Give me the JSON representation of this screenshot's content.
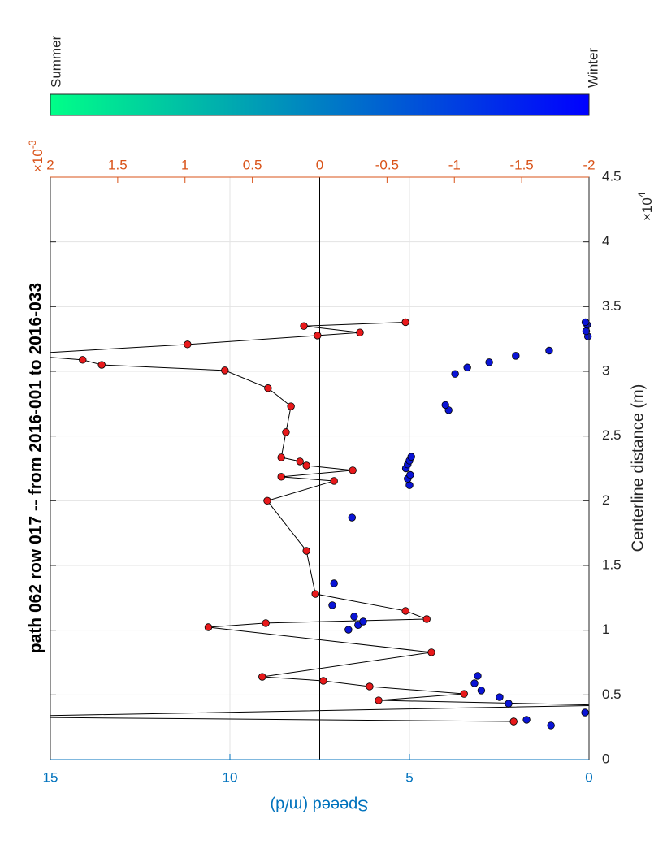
{
  "chart_data": {
    "type": "scatter",
    "title": "path 062 row 017 -- from 2016-001 to 2016-033",
    "x_label": "Centerline distance (m)",
    "y_label": "Speeed (m/d)",
    "x_multiplier": "×10",
    "x_exponent": "4",
    "y2_multiplier": "×10",
    "y2_exponent": "-3",
    "xlim": [
      0,
      4.5
    ],
    "xticks": [
      0,
      0.5,
      1,
      1.5,
      2,
      2.5,
      3,
      3.5,
      4,
      4.5
    ],
    "ylim": [
      0,
      15
    ],
    "yticks": [
      0,
      5,
      10,
      15
    ],
    "y2lim": [
      -2,
      2
    ],
    "y2ticks": [
      2,
      1.5,
      1,
      0.5,
      0,
      -0.5,
      -1,
      -1.5,
      -2
    ],
    "y2_reference_line": 0,
    "grid": true,
    "y_axis_color": "#0072bd",
    "y2_axis_color": "#d95319",
    "colorbar": {
      "labels": [
        "Summer",
        "Winter"
      ],
      "colors": [
        "#00ff88",
        "#0000ff"
      ]
    },
    "series": [
      {
        "color": "#e8191b",
        "line_color": "#000000",
        "line": true,
        "x": [
          0.295,
          0.33,
          0.42,
          0.458,
          0.508,
          0.565,
          0.609,
          0.64,
          0.829,
          1.023,
          1.055,
          1.086,
          1.149,
          1.28,
          1.613,
          2.0,
          2.153,
          2.185,
          2.235,
          2.272,
          2.304,
          2.335,
          2.53,
          2.73,
          2.87,
          3.007,
          3.05,
          3.089,
          3.13,
          3.208,
          3.277,
          3.3,
          3.35,
          3.38
        ],
        "values": [
          2.1,
          17,
          -0.5,
          5.86,
          3.48,
          6.11,
          7.4,
          9.1,
          4.39,
          10.6,
          9.0,
          4.52,
          5.11,
          7.62,
          7.87,
          8.96,
          7.1,
          8.57,
          6.58,
          7.87,
          8.05,
          8.57,
          8.44,
          8.3,
          8.94,
          10.14,
          13.57,
          14.1,
          16,
          11.18,
          7.56,
          6.38,
          7.94,
          5.11
        ]
      },
      {
        "color": "#0a14d6",
        "line": false,
        "x": [
          0.264,
          0.308,
          0.364,
          0.433,
          0.483,
          0.534,
          0.59,
          0.647,
          1.004,
          1.04,
          1.067,
          1.105,
          1.193,
          1.362,
          1.87,
          2.12,
          2.17,
          2.2,
          2.25,
          2.28,
          2.31,
          2.34,
          2.7,
          2.74,
          2.98,
          3.03,
          3.07,
          3.12,
          3.16,
          3.27,
          3.31,
          3.36,
          3.38
        ],
        "values": [
          1.06,
          1.74,
          0.11,
          2.24,
          2.49,
          3.0,
          3.19,
          3.1,
          6.7,
          6.43,
          6.29,
          6.54,
          7.15,
          7.1,
          6.6,
          5.0,
          5.05,
          4.98,
          5.1,
          5.05,
          5.0,
          4.95,
          3.91,
          4.0,
          3.73,
          3.39,
          2.78,
          2.04,
          1.11,
          0.03,
          0.08,
          0.05,
          0.1
        ]
      }
    ]
  }
}
